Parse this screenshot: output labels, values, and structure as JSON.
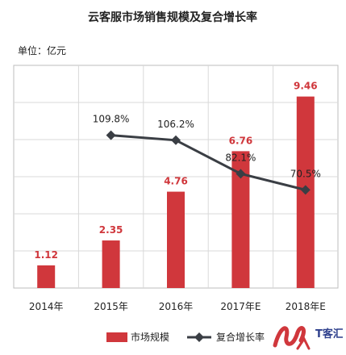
{
  "chart_data": {
    "type": "bar+line",
    "title": "云客服市场销售规模及复合增长率",
    "unit_label": "单位：亿元",
    "categories": [
      "2014年",
      "2015年",
      "2016年",
      "2017年E",
      "2018年E"
    ],
    "series": [
      {
        "name": "市场规模",
        "type": "bar",
        "values": [
          1.12,
          2.35,
          4.76,
          6.76,
          9.46
        ],
        "labels": [
          "1.12",
          "2.35",
          "4.76",
          "6.76",
          "9.46"
        ],
        "color": "#d0373c"
      },
      {
        "name": "复合增长率",
        "type": "line",
        "values": [
          null,
          109.8,
          106.2,
          82.1,
          70.5
        ],
        "labels": [
          "",
          "109.8%",
          "106.2%",
          "82.1%",
          "70.5%"
        ],
        "color": "#3a3e44"
      }
    ],
    "grid": true,
    "legend_position": "bottom"
  },
  "watermark": {
    "text": "T客汇"
  }
}
